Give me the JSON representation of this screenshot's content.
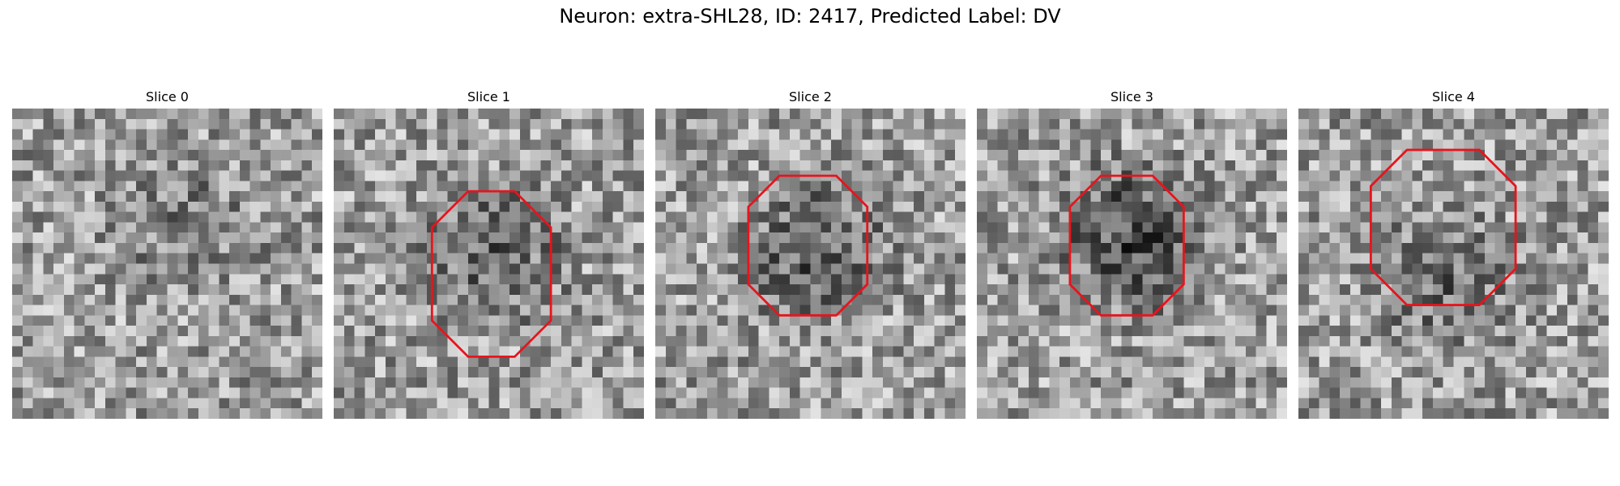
{
  "figure": {
    "title": "Neuron: extra-SHL28, ID: 2417, Predicted Label: DV"
  },
  "panels": [
    {
      "title": "Slice 0",
      "has_contour": false,
      "seed": 11,
      "dark_center": [
        0.55,
        0.35
      ],
      "dark_strength": 0.15
    },
    {
      "title": "Slice 1",
      "has_contour": true,
      "seed": 23,
      "dark_center": [
        0.5,
        0.45
      ],
      "dark_strength": 0.25
    },
    {
      "title": "Slice 2",
      "has_contour": true,
      "seed": 37,
      "dark_center": [
        0.5,
        0.45
      ],
      "dark_strength": 0.3
    },
    {
      "title": "Slice 3",
      "has_contour": true,
      "seed": 51,
      "dark_center": [
        0.5,
        0.4
      ],
      "dark_strength": 0.4
    },
    {
      "title": "Slice 4",
      "has_contour": true,
      "seed": 67,
      "dark_center": [
        0.45,
        0.55
      ],
      "dark_strength": 0.2
    }
  ],
  "colors": {
    "contour": "#e8141c"
  }
}
